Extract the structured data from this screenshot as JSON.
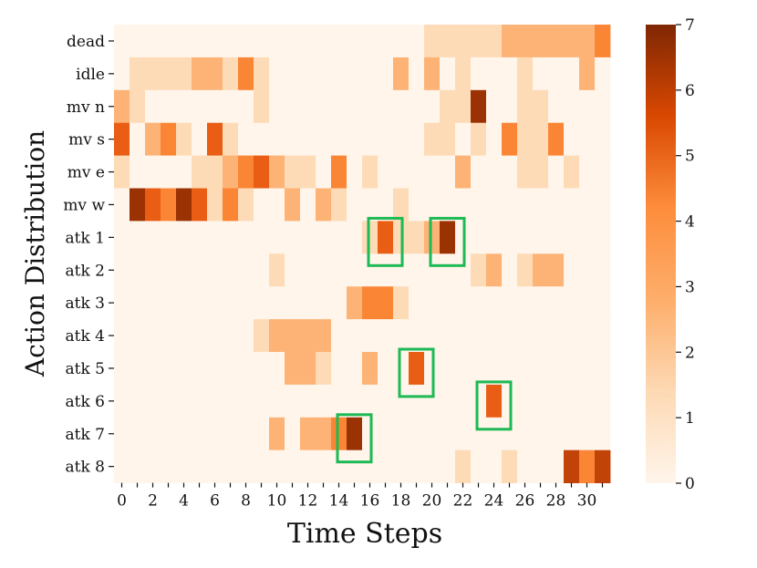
{
  "chart_data": {
    "type": "heatmap",
    "title": "",
    "xlabel": "Time Steps",
    "ylabel": "Action Distribution",
    "x": [
      0,
      1,
      2,
      3,
      4,
      5,
      6,
      7,
      8,
      9,
      10,
      11,
      12,
      13,
      14,
      15,
      16,
      17,
      18,
      19,
      20,
      21,
      22,
      23,
      24,
      25,
      26,
      27,
      28,
      29,
      30,
      31
    ],
    "x_tick_labels": [
      "0",
      "2",
      "4",
      "6",
      "8",
      "10",
      "12",
      "14",
      "16",
      "18",
      "20",
      "22",
      "24",
      "26",
      "28",
      "30"
    ],
    "y_categories": [
      "dead",
      "idle",
      "mv n",
      "mv s",
      "mv e",
      "mv w",
      "atk 1",
      "atk 2",
      "atk 3",
      "atk 4",
      "atk 5",
      "atk 6",
      "atk 7",
      "atk 8"
    ],
    "colorbar": {
      "min": 0,
      "max": 7,
      "ticks": [
        0,
        1,
        2,
        3,
        4,
        5,
        6,
        7
      ],
      "colormap": "Oranges"
    },
    "values": [
      [
        0,
        0,
        0,
        0,
        0,
        0,
        0,
        0,
        0,
        0,
        0,
        0,
        0,
        0,
        0,
        0,
        0,
        0,
        0,
        0,
        1,
        1,
        1,
        1,
        1,
        2,
        2,
        2,
        2,
        2,
        2,
        3
      ],
      [
        0,
        1,
        1,
        1,
        1,
        2,
        2,
        1,
        3,
        1,
        0,
        0,
        0,
        0,
        0,
        0,
        0,
        0,
        2,
        0,
        2,
        0,
        1,
        0,
        0,
        0,
        1,
        0,
        0,
        0,
        2,
        0
      ],
      [
        2,
        1,
        0,
        0,
        0,
        0,
        0,
        0,
        0,
        1,
        0,
        0,
        0,
        0,
        0,
        0,
        0,
        0,
        0,
        0,
        0,
        1,
        1,
        6,
        0,
        0,
        1,
        1,
        0,
        0,
        0,
        0
      ],
      [
        4,
        0,
        2,
        3,
        1,
        0,
        4,
        1,
        0,
        0,
        0,
        0,
        0,
        0,
        0,
        0,
        0,
        0,
        0,
        0,
        1,
        1,
        0,
        1,
        0,
        3,
        1,
        1,
        3,
        0,
        0,
        0
      ],
      [
        1,
        0,
        0,
        0,
        0,
        1,
        1,
        2,
        3,
        4,
        2,
        1,
        1,
        0,
        3,
        0,
        1,
        0,
        0,
        0,
        0,
        0,
        2,
        0,
        0,
        0,
        1,
        1,
        0,
        1,
        0,
        0
      ],
      [
        0,
        6,
        4,
        3,
        6,
        4,
        1,
        3,
        1,
        0,
        0,
        2,
        0,
        2,
        1,
        0,
        0,
        0,
        1,
        0,
        0,
        0,
        0,
        0,
        0,
        0,
        0,
        0,
        0,
        0,
        0,
        0
      ],
      [
        0,
        0,
        0,
        0,
        0,
        0,
        0,
        0,
        0,
        0,
        0,
        0,
        0,
        0,
        0,
        0,
        1,
        4,
        1,
        1,
        2,
        6,
        0,
        0,
        0,
        0,
        0,
        0,
        0,
        0,
        0,
        0
      ],
      [
        0,
        0,
        0,
        0,
        0,
        0,
        0,
        0,
        0,
        0,
        1,
        0,
        0,
        0,
        0,
        0,
        0,
        0,
        0,
        0,
        0,
        0,
        0,
        1,
        2,
        0,
        1,
        2,
        2,
        0,
        0,
        0
      ],
      [
        0,
        0,
        0,
        0,
        0,
        0,
        0,
        0,
        0,
        0,
        0,
        0,
        0,
        0,
        0,
        2,
        3,
        3,
        1,
        0,
        0,
        0,
        0,
        0,
        0,
        0,
        0,
        0,
        0,
        0,
        0,
        0
      ],
      [
        0,
        0,
        0,
        0,
        0,
        0,
        0,
        0,
        0,
        1,
        2,
        2,
        2,
        2,
        0,
        0,
        0,
        0,
        0,
        0,
        0,
        0,
        0,
        0,
        0,
        0,
        0,
        0,
        0,
        0,
        0,
        0
      ],
      [
        0,
        0,
        0,
        0,
        0,
        0,
        0,
        0,
        0,
        0,
        0,
        2,
        2,
        1,
        0,
        0,
        2,
        0,
        0,
        4,
        0,
        0,
        0,
        0,
        0,
        0,
        0,
        0,
        0,
        0,
        0,
        0
      ],
      [
        0,
        0,
        0,
        0,
        0,
        0,
        0,
        0,
        0,
        0,
        0,
        0,
        0,
        0,
        0,
        0,
        0,
        0,
        0,
        0,
        0,
        0,
        0,
        0,
        4,
        0,
        0,
        0,
        0,
        0,
        0,
        0
      ],
      [
        0,
        0,
        0,
        0,
        0,
        0,
        0,
        0,
        0,
        0,
        2,
        0,
        2,
        2,
        3,
        6,
        0,
        0,
        0,
        0,
        0,
        0,
        0,
        0,
        0,
        0,
        0,
        0,
        0,
        0,
        0,
        0
      ],
      [
        0,
        0,
        0,
        0,
        0,
        0,
        0,
        0,
        0,
        0,
        0,
        0,
        0,
        0,
        0,
        0,
        0,
        0,
        0,
        0,
        0,
        0,
        1,
        0,
        0,
        1,
        0,
        0,
        0,
        5,
        3,
        5
      ]
    ],
    "highlight_boxes": [
      {
        "row": "atk 1",
        "x": [
          17,
          17
        ]
      },
      {
        "row": "atk 1",
        "x": [
          21,
          21
        ]
      },
      {
        "row": "atk 5",
        "x": [
          19,
          19
        ]
      },
      {
        "row": "atk 6",
        "x": [
          24,
          24
        ]
      },
      {
        "row": "atk 7",
        "x": [
          15,
          15
        ]
      }
    ],
    "highlight_color": "#1db954",
    "colormap_stops": [
      "#fff5eb",
      "#fdd0a2",
      "#fd8d3c",
      "#e6550d",
      "#a63603",
      "#7f2704"
    ]
  }
}
